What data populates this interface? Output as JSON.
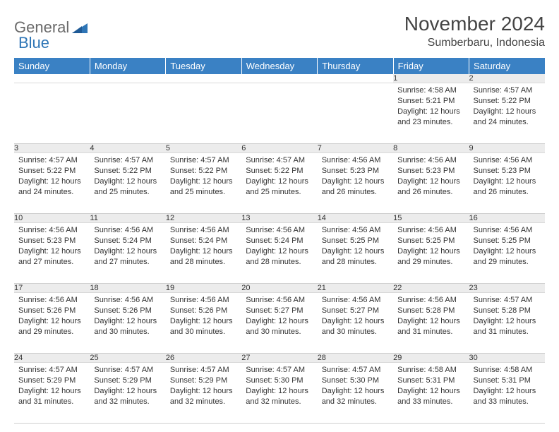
{
  "logo": {
    "general": "General",
    "blue": "Blue"
  },
  "title": "November 2024",
  "location": "Sumberbaru, Indonesia",
  "colors": {
    "header_bg": "#3a81c4",
    "header_text": "#ffffff",
    "daynum_bg": "#ececec",
    "text": "#333333",
    "border": "#cfcfcf"
  },
  "weekdays": [
    "Sunday",
    "Monday",
    "Tuesday",
    "Wednesday",
    "Thursday",
    "Friday",
    "Saturday"
  ],
  "weeks": [
    [
      null,
      null,
      null,
      null,
      null,
      {
        "n": "1",
        "sr": "4:58 AM",
        "ss": "5:21 PM",
        "dl": "12 hours and 23 minutes."
      },
      {
        "n": "2",
        "sr": "4:57 AM",
        "ss": "5:22 PM",
        "dl": "12 hours and 24 minutes."
      }
    ],
    [
      {
        "n": "3",
        "sr": "4:57 AM",
        "ss": "5:22 PM",
        "dl": "12 hours and 24 minutes."
      },
      {
        "n": "4",
        "sr": "4:57 AM",
        "ss": "5:22 PM",
        "dl": "12 hours and 25 minutes."
      },
      {
        "n": "5",
        "sr": "4:57 AM",
        "ss": "5:22 PM",
        "dl": "12 hours and 25 minutes."
      },
      {
        "n": "6",
        "sr": "4:57 AM",
        "ss": "5:22 PM",
        "dl": "12 hours and 25 minutes."
      },
      {
        "n": "7",
        "sr": "4:56 AM",
        "ss": "5:23 PM",
        "dl": "12 hours and 26 minutes."
      },
      {
        "n": "8",
        "sr": "4:56 AM",
        "ss": "5:23 PM",
        "dl": "12 hours and 26 minutes."
      },
      {
        "n": "9",
        "sr": "4:56 AM",
        "ss": "5:23 PM",
        "dl": "12 hours and 26 minutes."
      }
    ],
    [
      {
        "n": "10",
        "sr": "4:56 AM",
        "ss": "5:23 PM",
        "dl": "12 hours and 27 minutes."
      },
      {
        "n": "11",
        "sr": "4:56 AM",
        "ss": "5:24 PM",
        "dl": "12 hours and 27 minutes."
      },
      {
        "n": "12",
        "sr": "4:56 AM",
        "ss": "5:24 PM",
        "dl": "12 hours and 28 minutes."
      },
      {
        "n": "13",
        "sr": "4:56 AM",
        "ss": "5:24 PM",
        "dl": "12 hours and 28 minutes."
      },
      {
        "n": "14",
        "sr": "4:56 AM",
        "ss": "5:25 PM",
        "dl": "12 hours and 28 minutes."
      },
      {
        "n": "15",
        "sr": "4:56 AM",
        "ss": "5:25 PM",
        "dl": "12 hours and 29 minutes."
      },
      {
        "n": "16",
        "sr": "4:56 AM",
        "ss": "5:25 PM",
        "dl": "12 hours and 29 minutes."
      }
    ],
    [
      {
        "n": "17",
        "sr": "4:56 AM",
        "ss": "5:26 PM",
        "dl": "12 hours and 29 minutes."
      },
      {
        "n": "18",
        "sr": "4:56 AM",
        "ss": "5:26 PM",
        "dl": "12 hours and 30 minutes."
      },
      {
        "n": "19",
        "sr": "4:56 AM",
        "ss": "5:26 PM",
        "dl": "12 hours and 30 minutes."
      },
      {
        "n": "20",
        "sr": "4:56 AM",
        "ss": "5:27 PM",
        "dl": "12 hours and 30 minutes."
      },
      {
        "n": "21",
        "sr": "4:56 AM",
        "ss": "5:27 PM",
        "dl": "12 hours and 30 minutes."
      },
      {
        "n": "22",
        "sr": "4:56 AM",
        "ss": "5:28 PM",
        "dl": "12 hours and 31 minutes."
      },
      {
        "n": "23",
        "sr": "4:57 AM",
        "ss": "5:28 PM",
        "dl": "12 hours and 31 minutes."
      }
    ],
    [
      {
        "n": "24",
        "sr": "4:57 AM",
        "ss": "5:29 PM",
        "dl": "12 hours and 31 minutes."
      },
      {
        "n": "25",
        "sr": "4:57 AM",
        "ss": "5:29 PM",
        "dl": "12 hours and 32 minutes."
      },
      {
        "n": "26",
        "sr": "4:57 AM",
        "ss": "5:29 PM",
        "dl": "12 hours and 32 minutes."
      },
      {
        "n": "27",
        "sr": "4:57 AM",
        "ss": "5:30 PM",
        "dl": "12 hours and 32 minutes."
      },
      {
        "n": "28",
        "sr": "4:57 AM",
        "ss": "5:30 PM",
        "dl": "12 hours and 32 minutes."
      },
      {
        "n": "29",
        "sr": "4:58 AM",
        "ss": "5:31 PM",
        "dl": "12 hours and 33 minutes."
      },
      {
        "n": "30",
        "sr": "4:58 AM",
        "ss": "5:31 PM",
        "dl": "12 hours and 33 minutes."
      }
    ]
  ],
  "labels": {
    "sunrise": "Sunrise: ",
    "sunset": "Sunset: ",
    "daylight": "Daylight: "
  }
}
